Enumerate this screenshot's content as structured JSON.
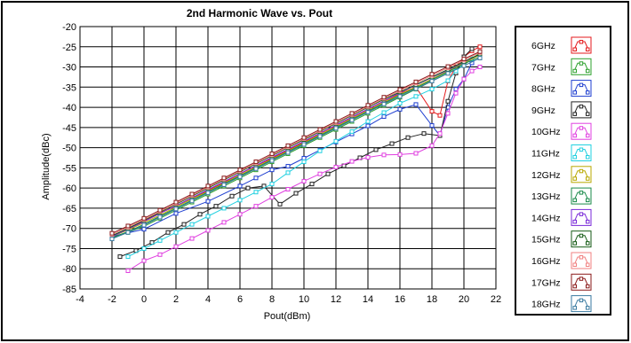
{
  "chart_data": {
    "type": "line",
    "title": "2nd Harmonic Wave vs. Pout",
    "xlabel": "Pout(dBm)",
    "ylabel": "Amplitude(dBc)",
    "xlim": [
      -4,
      22
    ],
    "ylim": [
      -85,
      -20
    ],
    "xticks": [
      -4,
      -2,
      0,
      2,
      4,
      6,
      8,
      10,
      12,
      14,
      16,
      18,
      20,
      22
    ],
    "yticks": [
      -20,
      -25,
      -30,
      -35,
      -40,
      -45,
      -50,
      -55,
      -60,
      -65,
      -70,
      -75,
      -80,
      -85
    ],
    "grid": true,
    "legend_position": "right",
    "series": [
      {
        "name": "6GHz",
        "color": "#e41a1c",
        "x": [
          -2,
          -1,
          0,
          1,
          2,
          3,
          4,
          5,
          6,
          7,
          8,
          9,
          10,
          11,
          12,
          13,
          14,
          15,
          16,
          17,
          18,
          18.5,
          19,
          19.5,
          20,
          20.5,
          21
        ],
        "y": [
          -72,
          -70,
          -68.2,
          -66.2,
          -64.4,
          -62.5,
          -60.6,
          -58.6,
          -56.5,
          -54.5,
          -52.6,
          -50.6,
          -48.6,
          -46.5,
          -44.5,
          -42.5,
          -40.5,
          -38.5,
          -36.6,
          -35,
          -41,
          -42,
          -33.5,
          -30,
          -27.5,
          -26,
          -25
        ]
      },
      {
        "name": "7GHz",
        "color": "#2ca02c",
        "x": [
          -2,
          -1,
          0,
          1,
          2,
          3,
          4,
          5,
          6,
          7,
          8,
          9,
          10,
          11,
          12,
          13,
          14,
          15,
          16,
          17,
          18,
          19,
          20,
          20.5,
          21
        ],
        "y": [
          -72.5,
          -71,
          -69.5,
          -67.5,
          -65.5,
          -63.5,
          -61.5,
          -59.5,
          -57.5,
          -55.5,
          -53.5,
          -51.5,
          -49.5,
          -47.5,
          -45.5,
          -43.5,
          -41.5,
          -39.5,
          -37.5,
          -35.5,
          -33.5,
          -31.5,
          -29.5,
          -28,
          -26.5
        ]
      },
      {
        "name": "8GHz",
        "color": "#1f3fd0",
        "x": [
          -2,
          0,
          2,
          4,
          6,
          7,
          8,
          9,
          10,
          11,
          12,
          13,
          14,
          15,
          16,
          17,
          18,
          18.5,
          19,
          19.5,
          20,
          20.5
        ],
        "y": [
          -72,
          -70.2,
          -66.3,
          -63.3,
          -59.5,
          -57.5,
          -55.5,
          -54.6,
          -52.6,
          -50.6,
          -48.6,
          -46.6,
          -44.6,
          -42.3,
          -40.5,
          -39.3,
          -44.5,
          -47,
          -40,
          -35.5,
          -33,
          -29
        ]
      },
      {
        "name": "9GHz",
        "color": "#222222",
        "x": [
          -1.5,
          -0.5,
          0.5,
          1.5,
          2.5,
          3.5,
          4.5,
          5.5,
          6.5,
          7.5,
          8.5,
          9.5,
          10.5,
          11.5,
          12.5,
          13.5,
          14.5,
          15.5,
          16.5,
          17.5,
          18.5,
          19,
          19.5,
          20,
          20.5
        ],
        "y": [
          -77,
          -75.5,
          -73.5,
          -71,
          -69,
          -66.5,
          -64.5,
          -62,
          -60,
          -59.5,
          -64,
          -61.3,
          -59,
          -56.5,
          -54.5,
          -52.5,
          -50.5,
          -49,
          -47.5,
          -46.5,
          -47,
          -38.5,
          -31.5,
          -27.5,
          -25.5
        ]
      },
      {
        "name": "10GHz",
        "color": "#e040e0",
        "x": [
          -1,
          0,
          1,
          2,
          3,
          4,
          5,
          6,
          7,
          8,
          9,
          10,
          11,
          12,
          13,
          14,
          15,
          16,
          17,
          18,
          18.5,
          19,
          19.5,
          20,
          20.5,
          21
        ],
        "y": [
          -80.5,
          -78,
          -76.5,
          -74.5,
          -72.5,
          -70.5,
          -68.5,
          -66.5,
          -64.5,
          -62.3,
          -60.3,
          -58.3,
          -56.5,
          -54.8,
          -53.4,
          -52.4,
          -51.8,
          -51.7,
          -51.4,
          -49.5,
          -46.5,
          -41.5,
          -36.5,
          -33,
          -31,
          -30
        ]
      },
      {
        "name": "11GHz",
        "color": "#22d0e0",
        "x": [
          -1,
          0,
          1,
          2,
          3,
          4,
          5,
          6,
          7,
          8,
          9,
          10,
          11,
          12,
          13,
          14,
          15,
          16,
          17,
          18,
          19,
          19.5,
          20,
          20.5,
          21
        ],
        "y": [
          -77,
          -75,
          -73,
          -71,
          -69,
          -67,
          -65,
          -63,
          -61,
          -59,
          -56.2,
          -53.5,
          -50.8,
          -48.4,
          -46,
          -43.5,
          -41.3,
          -39,
          -37.3,
          -35.5,
          -33.4,
          -31,
          -29.3,
          -28,
          -27
        ]
      },
      {
        "name": "12GHz",
        "color": "#b8a800",
        "x": [
          -2,
          -1,
          0,
          1,
          2,
          3,
          4,
          5,
          6,
          7,
          8,
          9,
          10,
          11,
          12,
          13,
          14,
          15,
          16,
          17,
          18,
          19,
          20,
          21
        ],
        "y": [
          -72,
          -70.4,
          -68.6,
          -66.7,
          -64.7,
          -62.7,
          -60.8,
          -58.8,
          -56.8,
          -54.8,
          -52.8,
          -50.8,
          -48.8,
          -46.8,
          -44.8,
          -42.8,
          -40.8,
          -38.8,
          -36.8,
          -34.9,
          -33,
          -31,
          -29,
          -27
        ]
      },
      {
        "name": "13GHz",
        "color": "#1a8a4a",
        "x": [
          -2,
          -1,
          0,
          1,
          2,
          3,
          4,
          5,
          6,
          7,
          8,
          9,
          10,
          11,
          12,
          13,
          14,
          15,
          16,
          17,
          18,
          19,
          20,
          21
        ],
        "y": [
          -72.3,
          -70.8,
          -69,
          -67,
          -65,
          -63,
          -61,
          -59,
          -57,
          -55,
          -53,
          -51,
          -49,
          -47,
          -45,
          -43,
          -41,
          -39,
          -37,
          -35.2,
          -33.2,
          -31.2,
          -29.2,
          -27.5
        ]
      },
      {
        "name": "14GHz",
        "color": "#7a2ad8",
        "x": [
          -2,
          -1,
          0,
          1,
          2,
          3,
          4,
          5,
          6,
          7,
          8,
          9,
          10,
          11,
          12,
          13,
          14,
          15,
          16,
          17,
          18,
          19,
          20,
          21
        ],
        "y": [
          -72,
          -70.2,
          -68.3,
          -66.3,
          -64.4,
          -62.4,
          -60.4,
          -58.4,
          -56.4,
          -54.4,
          -52.4,
          -50.4,
          -48.4,
          -46.4,
          -44.4,
          -42.4,
          -40.4,
          -38.4,
          -36.4,
          -34.5,
          -32.6,
          -30.8,
          -28.8,
          -26.8
        ]
      },
      {
        "name": "15GHz",
        "color": "#145a14",
        "x": [
          -2,
          -1,
          0,
          1,
          2,
          3,
          4,
          5,
          6,
          7,
          8,
          9,
          10,
          11,
          12,
          13,
          14,
          15,
          16,
          17,
          18,
          19,
          20,
          21
        ],
        "y": [
          -71.8,
          -70,
          -68,
          -66,
          -64,
          -62,
          -60,
          -58,
          -56,
          -54,
          -52,
          -50,
          -48,
          -46,
          -44,
          -42,
          -40,
          -38,
          -36.2,
          -34.4,
          -32.5,
          -30.6,
          -28.7,
          -26.8
        ]
      },
      {
        "name": "16GHz",
        "color": "#f08080",
        "x": [
          -2,
          -1,
          0,
          1,
          2,
          3,
          4,
          5,
          6,
          7,
          8,
          9,
          10,
          11,
          12,
          13,
          14,
          15,
          16,
          17,
          18,
          19,
          20,
          21
        ],
        "y": [
          -71.5,
          -69.7,
          -67.8,
          -65.8,
          -63.8,
          -61.8,
          -59.8,
          -57.8,
          -55.8,
          -53.8,
          -51.8,
          -49.8,
          -47.8,
          -45.8,
          -43.8,
          -41.8,
          -39.8,
          -37.8,
          -35.9,
          -34,
          -32.1,
          -30.2,
          -28.3,
          -26.4
        ]
      },
      {
        "name": "17GHz",
        "color": "#8a1a1a",
        "x": [
          -2,
          -1,
          0,
          1,
          2,
          3,
          4,
          5,
          6,
          7,
          8,
          9,
          10,
          11,
          12,
          13,
          14,
          15,
          16,
          17,
          18,
          19,
          20,
          21
        ],
        "y": [
          -71.2,
          -69.4,
          -67.5,
          -65.5,
          -63.5,
          -61.5,
          -59.5,
          -57.5,
          -55.5,
          -53.5,
          -51.5,
          -49.5,
          -47.5,
          -45.5,
          -43.5,
          -41.5,
          -39.5,
          -37.5,
          -35.6,
          -33.7,
          -31.8,
          -29.9,
          -28,
          -26.2
        ]
      },
      {
        "name": "18GHz",
        "color": "#3a7aa0",
        "x": [
          -2,
          -1,
          0,
          1,
          2,
          3,
          4,
          5,
          6,
          7,
          8,
          9,
          10,
          11,
          12,
          13,
          14,
          15,
          16,
          17,
          18,
          19,
          20,
          21
        ],
        "y": [
          -72.6,
          -71,
          -69.2,
          -67.2,
          -65.2,
          -63.2,
          -61.2,
          -59.2,
          -57.2,
          -55.2,
          -53.2,
          -51.2,
          -49.2,
          -47.2,
          -45.2,
          -43.2,
          -41.2,
          -39.2,
          -37.3,
          -35.4,
          -33.5,
          -31.6,
          -29.7,
          -27.8
        ]
      }
    ]
  }
}
